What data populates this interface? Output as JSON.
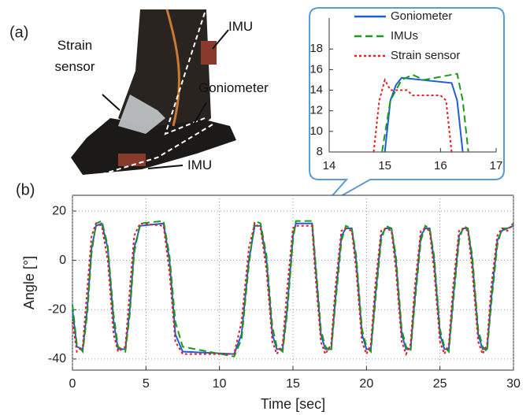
{
  "photo": {
    "label": "(a)",
    "annotations": [
      "Strain sensor",
      "IMU",
      "Goniometer",
      "IMU"
    ]
  },
  "chart_data": [
    {
      "type": "line",
      "panel_label": "(b)",
      "xlabel": "Time [sec]",
      "ylabel": "Angle [°]",
      "xlim": [
        0,
        30
      ],
      "ylim": [
        -44.5,
        26.4
      ],
      "xticks": [
        0,
        5,
        10,
        15,
        20,
        25,
        30
      ],
      "yticks": [
        -40,
        -20,
        0,
        20
      ],
      "grid": true,
      "x": [
        0,
        0.3,
        0.7,
        1.0,
        1.3,
        1.6,
        2.0,
        2.4,
        2.8,
        3.1,
        3.6,
        3.9,
        4.2,
        4.6,
        6.2,
        6.6,
        7.0,
        7.5,
        11.0,
        11.5,
        12.0,
        12.4,
        12.8,
        13.2,
        13.6,
        13.9,
        14.3,
        14.6,
        15.0,
        15.2,
        16.3,
        16.5,
        16.9,
        17.2,
        17.6,
        17.9,
        18.3,
        18.6,
        19.0,
        19.3,
        19.7,
        20.0,
        20.3,
        20.6,
        21.0,
        21.3,
        21.7,
        22.0,
        22.4,
        22.7,
        23.0,
        23.3,
        23.7,
        24.0,
        24.3,
        24.6,
        25.0,
        25.3,
        25.6,
        25.9,
        26.3,
        26.6,
        26.9,
        27.2,
        27.6,
        27.9,
        28.2,
        28.5,
        28.9,
        29.2,
        29.6,
        30.0
      ],
      "series": [
        {
          "name": "Goniometer",
          "color": "#1f5fd6",
          "linestyle": "solid",
          "values": [
            -20,
            -35,
            -36,
            -20,
            5,
            14,
            15,
            5,
            -25,
            -36,
            -36,
            -20,
            5,
            14,
            15,
            0,
            -30,
            -37,
            -38,
            -30,
            0,
            14,
            14,
            0,
            -30,
            -36,
            -36,
            -20,
            10,
            15,
            15,
            0,
            -30,
            -36,
            -36,
            -15,
            10,
            13,
            13,
            0,
            -30,
            -36,
            -36,
            -15,
            10,
            13,
            13,
            0,
            -30,
            -36,
            -36,
            -15,
            10,
            13,
            13,
            0,
            -30,
            -36,
            -36,
            -15,
            10,
            13,
            13,
            0,
            -30,
            -36,
            -36,
            -15,
            8,
            12,
            13,
            14
          ]
        },
        {
          "name": "IMUs",
          "color": "#1a9a1a",
          "linestyle": "dashed",
          "values": [
            -18,
            -34,
            -37,
            -22,
            3,
            15,
            16,
            6,
            -22,
            -35,
            -37,
            -22,
            3,
            15,
            16,
            2,
            -25,
            -35,
            -39,
            -32,
            -2,
            16,
            15,
            2,
            -27,
            -35,
            -37,
            -22,
            8,
            16,
            16,
            2,
            -28,
            -35,
            -37,
            -17,
            8,
            14,
            13,
            2,
            -28,
            -35,
            -37,
            -17,
            8,
            14,
            13,
            2,
            -28,
            -35,
            -37,
            -17,
            8,
            14,
            13,
            2,
            -28,
            -35,
            -37,
            -17,
            8,
            14,
            13,
            2,
            -28,
            -35,
            -37,
            -17,
            6,
            13,
            13,
            15
          ]
        },
        {
          "name": "Strain sensor",
          "color": "#e02020",
          "linestyle": "dotted",
          "values": [
            -25,
            -37,
            -35,
            -12,
            10,
            15,
            14,
            0,
            -30,
            -37,
            -35,
            -12,
            10,
            15,
            14,
            -5,
            -33,
            -38,
            -38,
            -25,
            5,
            15,
            13,
            -4,
            -33,
            -38,
            -34,
            -12,
            13,
            14,
            14,
            -4,
            -33,
            -38,
            -34,
            -10,
            12,
            13,
            12,
            -4,
            -33,
            -38,
            -34,
            -10,
            12,
            13,
            12,
            -4,
            -33,
            -38,
            -34,
            -10,
            12,
            13,
            12,
            -4,
            -33,
            -38,
            -34,
            -10,
            12,
            13,
            12,
            -4,
            -33,
            -38,
            -34,
            -10,
            10,
            13,
            12,
            15
          ]
        }
      ]
    },
    {
      "type": "line",
      "xlim": [
        14,
        17
      ],
      "ylim": [
        8,
        21
      ],
      "xticks": [
        14,
        15,
        16,
        17
      ],
      "yticks": [
        8,
        10,
        12,
        14,
        16,
        18
      ],
      "grid": false,
      "legend": "upper right",
      "series": [
        {
          "name": "Goniometer",
          "color": "#1f5fd6",
          "linestyle": "solid",
          "x": [
            15.0,
            15.1,
            15.2,
            15.3,
            16.2,
            16.3,
            16.4
          ],
          "values": [
            8,
            13,
            14.5,
            15.2,
            14.7,
            13,
            8
          ]
        },
        {
          "name": "IMUs",
          "color": "#1a9a1a",
          "linestyle": "dashed",
          "x": [
            14.95,
            15.1,
            15.3,
            15.5,
            15.7,
            16.3,
            16.4,
            16.5
          ],
          "values": [
            8,
            13,
            15,
            15.5,
            15,
            15.6,
            13,
            8
          ]
        },
        {
          "name": "Strain sensor",
          "color": "#e02020",
          "linestyle": "dotted",
          "x": [
            14.8,
            14.9,
            15.0,
            15.1,
            15.4,
            15.5,
            16.0,
            16.1,
            16.2
          ],
          "values": [
            8,
            13,
            15,
            14,
            14,
            13.5,
            13.5,
            13,
            8
          ]
        }
      ]
    }
  ]
}
